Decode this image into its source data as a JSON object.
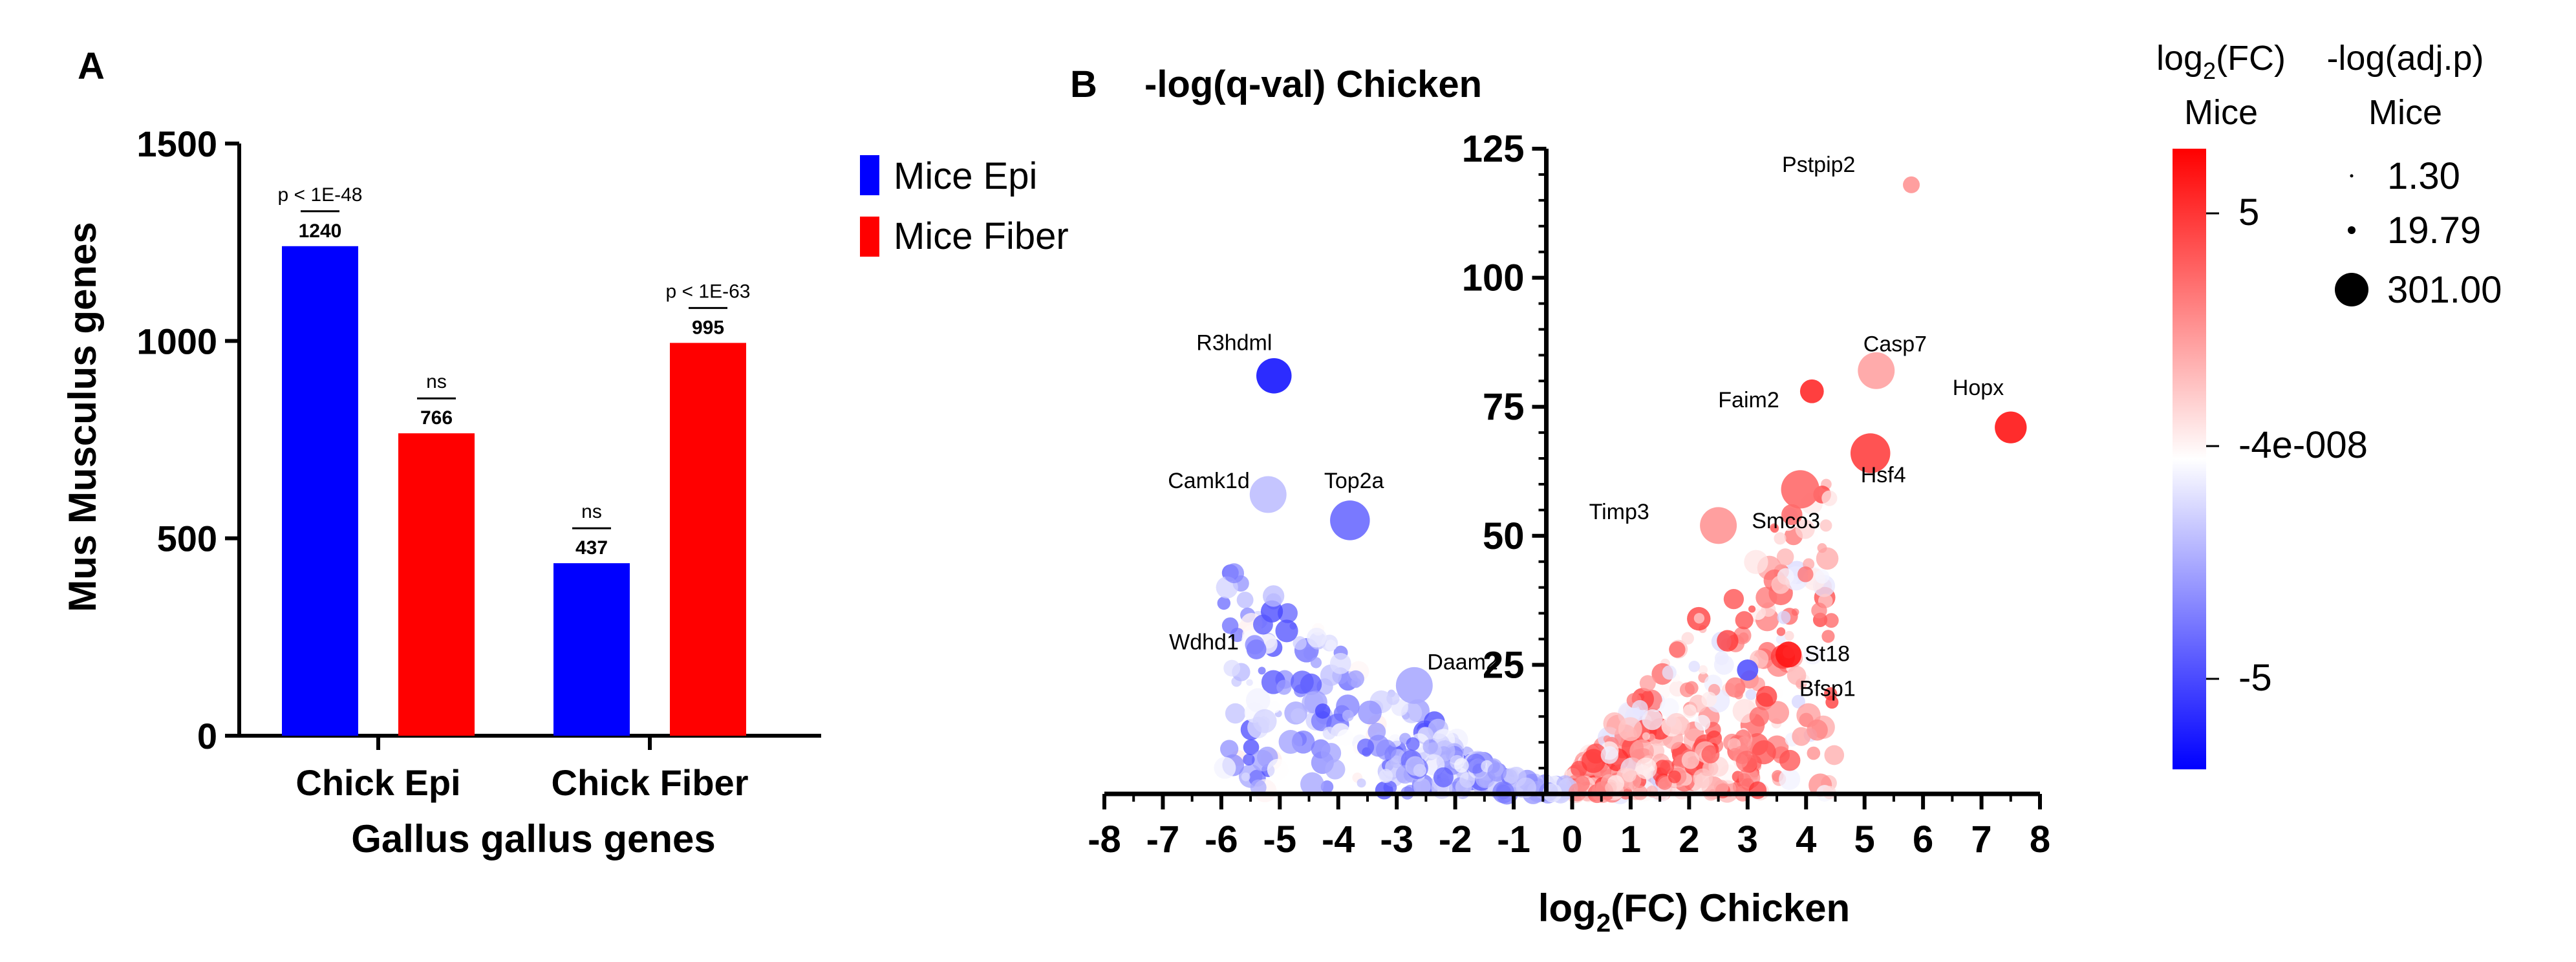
{
  "panel_a": {
    "letter": "A",
    "legend": [
      {
        "label": "Mice Epi",
        "color": "#0000ff"
      },
      {
        "label": "Mice Fiber",
        "color": "#ff0000"
      }
    ]
  },
  "panel_b": {
    "letter": "B",
    "title": "-log(q-val) Chicken",
    "colorbar": {
      "title_line1": "log₂(FC)",
      "title_line2": "Mice",
      "ticks": [
        "5",
        "-4e-008",
        "-5"
      ],
      "colors": {
        "high": "#ff0000",
        "mid": "#ffffff",
        "low": "#0000ff"
      }
    },
    "size_legend": {
      "title_line1": "-log(adj.p)",
      "title_line2": "Mice",
      "entries": [
        "1.30",
        "19.79",
        "301.00"
      ]
    }
  },
  "chart_data": [
    {
      "type": "bar",
      "title": "",
      "xlabel": "Gallus gallus genes",
      "ylabel": "Mus Musculus genes",
      "ylim": [
        0,
        1500
      ],
      "yticks": [
        "0",
        "500",
        "1000",
        "1500"
      ],
      "categories": [
        "Chick Epi",
        "Chick Fiber"
      ],
      "series": [
        {
          "name": "Mice Epi",
          "color": "#0000ff",
          "values": [
            1240,
            437
          ]
        },
        {
          "name": "Mice Fiber",
          "color": "#ff0000",
          "values": [
            766,
            995
          ]
        }
      ],
      "data_labels": [
        [
          "1240",
          "437"
        ],
        [
          "766",
          "995"
        ]
      ],
      "annotations": [
        {
          "category": "Chick Epi",
          "series": "Mice Epi",
          "text": "p < 1E-48"
        },
        {
          "category": "Chick Epi",
          "series": "Mice Fiber",
          "text": "ns"
        },
        {
          "category": "Chick Fiber",
          "series": "Mice Epi",
          "text": "ns"
        },
        {
          "category": "Chick Fiber",
          "series": "Mice Fiber",
          "text": "p < 1E-63"
        }
      ]
    },
    {
      "type": "scatter",
      "title": "-log(q-val) Chicken",
      "xlabel": "log₂(FC) Chicken",
      "ylabel": "",
      "xlim": [
        -8,
        8
      ],
      "ylim": [
        0,
        125
      ],
      "xticks": [
        "-8",
        "-7",
        "-6",
        "-5",
        "-4",
        "-3",
        "-2",
        "-1",
        "0",
        "1",
        "2",
        "3",
        "4",
        "5",
        "6",
        "7",
        "8"
      ],
      "yticks": [
        "25",
        "50",
        "75",
        "100",
        "125"
      ],
      "labeled_points": [
        {
          "gene": "Pstpip2",
          "x": 5.8,
          "y": 118,
          "fc_mice": 2.5,
          "size": 25
        },
        {
          "gene": "Casp7",
          "x": 5.2,
          "y": 82,
          "fc_mice": 2.2,
          "size": 120
        },
        {
          "gene": "Hopx",
          "x": 7.5,
          "y": 71,
          "fc_mice": 5.5,
          "size": 90
        },
        {
          "gene": "Faim2",
          "x": 4.1,
          "y": 78,
          "fc_mice": 5,
          "size": 50
        },
        {
          "gene": "Hsf4",
          "x": 5.1,
          "y": 66,
          "fc_mice": 4.5,
          "size": 140
        },
        {
          "gene": "Smco3",
          "x": 3.9,
          "y": 59,
          "fc_mice": 3.5,
          "size": 130
        },
        {
          "gene": "Timp3",
          "x": 2.5,
          "y": 52,
          "fc_mice": 2.5,
          "size": 120
        },
        {
          "gene": "St18",
          "x": 3.7,
          "y": 27,
          "fc_mice": 5.5,
          "size": 60
        },
        {
          "gene": "Bfsp1",
          "x": 3.0,
          "y": 24,
          "fc_mice": -4,
          "size": 40
        },
        {
          "gene": "R3hdml",
          "x": -5.1,
          "y": 81,
          "fc_mice": -5.5,
          "size": 110
        },
        {
          "gene": "Camk1d",
          "x": -5.2,
          "y": 58,
          "fc_mice": -1.5,
          "size": 120
        },
        {
          "gene": "Top2a",
          "x": -3.8,
          "y": 53,
          "fc_mice": -3.5,
          "size": 140
        },
        {
          "gene": "Wdhd1",
          "x": -5.4,
          "y": 28,
          "fc_mice": -3,
          "size": 35
        },
        {
          "gene": "Daam2",
          "x": -2.7,
          "y": 21,
          "fc_mice": -2,
          "size": 120
        }
      ],
      "color_scale": {
        "min": -6,
        "max": 6,
        "ticks": [
          5,
          0,
          -5
        ]
      },
      "size_scale": [
        1.3,
        19.79,
        301.0
      ]
    }
  ]
}
